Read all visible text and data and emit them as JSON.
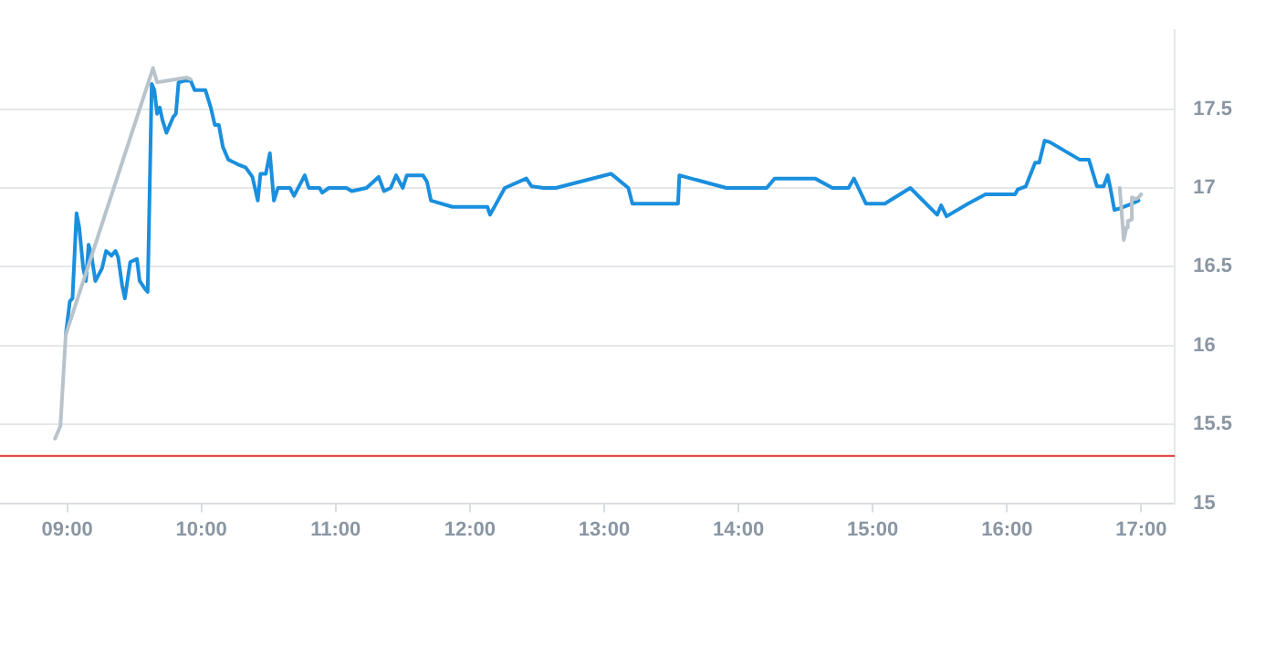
{
  "chart_data": {
    "type": "line",
    "xlim": [
      8.5,
      17.25
    ],
    "ylim": [
      15,
      18
    ],
    "xticks": [
      {
        "value": 9,
        "label": "09:00"
      },
      {
        "value": 10,
        "label": "10:00"
      },
      {
        "value": 11,
        "label": "11:00"
      },
      {
        "value": 12,
        "label": "12:00"
      },
      {
        "value": 13,
        "label": "13:00"
      },
      {
        "value": 14,
        "label": "14:00"
      },
      {
        "value": 15,
        "label": "15:00"
      },
      {
        "value": 16,
        "label": "16:00"
      },
      {
        "value": 17,
        "label": "17:00"
      }
    ],
    "yticks": [
      15,
      15.5,
      16,
      16.5,
      17,
      17.5
    ],
    "grid": "y",
    "legend": false,
    "marker": "none",
    "line_style": "solid",
    "ref_lines": [
      {
        "axis": "y",
        "value": 15.3,
        "color": "#e0312f"
      }
    ],
    "series": [
      {
        "color": "#b9c3cb",
        "x": [
          8.91,
          8.95,
          8.99,
          9.64,
          9.67,
          9.89,
          9.92,
          16.5,
          16.84,
          16.87,
          16.89,
          16.9,
          16.93,
          16.93,
          16.96,
          16.98,
          17.0
        ],
        "values": [
          15.41,
          15.49,
          16.07,
          17.76,
          17.67,
          17.7,
          17.69,
          null,
          17.0,
          16.67,
          16.75,
          16.79,
          16.8,
          16.94,
          16.93,
          16.94,
          16.96
        ]
      },
      {
        "color": "#1a8fde",
        "x": [
          8.99,
          9.02,
          9.04,
          9.07,
          9.09,
          9.12,
          9.14,
          9.16,
          9.18,
          9.21,
          9.26,
          9.29,
          9.33,
          9.36,
          9.38,
          9.41,
          9.43,
          9.47,
          9.52,
          9.54,
          9.58,
          9.6,
          9.63,
          9.65,
          9.67,
          9.69,
          9.71,
          9.74,
          9.79,
          9.81,
          9.83,
          9.87,
          9.92,
          9.95,
          10.03,
          10.07,
          10.1,
          10.13,
          10.16,
          10.2,
          10.27,
          10.33,
          10.38,
          10.42,
          10.44,
          10.48,
          10.51,
          10.54,
          10.57,
          10.66,
          10.69,
          10.77,
          10.8,
          10.88,
          10.9,
          10.95,
          11.08,
          11.12,
          11.23,
          11.32,
          11.36,
          11.41,
          11.45,
          11.5,
          11.53,
          11.65,
          11.68,
          11.71,
          11.87,
          12.13,
          12.15,
          12.26,
          12.42,
          12.46,
          12.55,
          12.64,
          13.05,
          13.08,
          13.18,
          13.21,
          13.55,
          13.56,
          13.91,
          14.21,
          14.27,
          14.57,
          14.7,
          14.82,
          14.86,
          14.95,
          15.09,
          15.28,
          15.48,
          15.51,
          15.55,
          15.71,
          15.84,
          16.06,
          16.08,
          16.14,
          16.21,
          16.24,
          16.28,
          16.32,
          16.54,
          16.61,
          16.67,
          16.72,
          16.75,
          16.77,
          16.8,
          16.84,
          16.93,
          16.98
        ],
        "values": [
          16.07,
          16.28,
          16.3,
          16.84,
          16.75,
          16.49,
          16.41,
          16.64,
          16.58,
          16.41,
          16.49,
          16.6,
          16.57,
          16.6,
          16.56,
          16.38,
          16.3,
          16.53,
          16.55,
          16.41,
          16.36,
          16.34,
          17.66,
          17.62,
          17.47,
          17.51,
          17.43,
          17.35,
          17.45,
          17.47,
          17.67,
          17.68,
          17.68,
          17.62,
          17.62,
          17.51,
          17.4,
          17.4,
          17.26,
          17.18,
          17.15,
          17.13,
          17.07,
          16.92,
          17.09,
          17.09,
          17.22,
          16.92,
          17.0,
          17.0,
          16.95,
          17.08,
          17.0,
          17.0,
          16.97,
          17.0,
          17.0,
          16.98,
          17.0,
          17.07,
          16.98,
          17.0,
          17.08,
          17.0,
          17.08,
          17.08,
          17.04,
          16.92,
          16.88,
          16.88,
          16.83,
          17.0,
          17.06,
          17.01,
          17.0,
          17.0,
          17.09,
          17.07,
          17.0,
          16.9,
          16.9,
          17.08,
          17.0,
          17.0,
          17.06,
          17.06,
          17.0,
          17.0,
          17.06,
          16.9,
          16.9,
          17.0,
          16.83,
          16.89,
          16.82,
          16.9,
          16.96,
          16.96,
          16.99,
          17.01,
          17.16,
          17.16,
          17.3,
          17.29,
          17.18,
          17.18,
          17.01,
          17.01,
          17.08,
          17.0,
          16.86,
          16.87,
          16.9,
          16.92
        ]
      }
    ]
  }
}
